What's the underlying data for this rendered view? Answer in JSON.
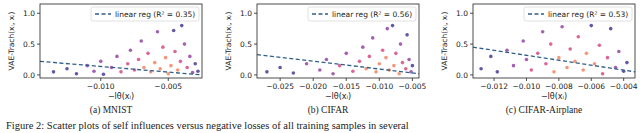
{
  "chart_data": [
    {
      "type": "scatter",
      "caption": "(a) MNIST",
      "x_label": "−lθ(xᵢ)",
      "y_label": "VAE-Trach(xᵢ, xᵢ)",
      "xlim": [
        -0.0145,
        -0.0025
      ],
      "ylim": [
        -0.05,
        1.15
      ],
      "xticks": [
        {
          "value": -0.01,
          "label": "−0.010"
        },
        {
          "value": -0.005,
          "label": "−0.005"
        }
      ],
      "yticks": [
        {
          "value": 0,
          "label": "0.0"
        },
        {
          "value": 0.5,
          "label": "0.5"
        },
        {
          "value": 1,
          "label": "1.0"
        }
      ],
      "legend": "upper right",
      "series": [
        {
          "type": "scatter",
          "marker": "circle",
          "x": [
            -0.0135,
            -0.0125,
            -0.0118,
            -0.011,
            -0.0105,
            -0.01,
            -0.0098,
            -0.0092,
            -0.0088,
            -0.0085,
            -0.008,
            -0.0078,
            -0.0075,
            -0.0072,
            -0.007,
            -0.0068,
            -0.0065,
            -0.0063,
            -0.006,
            -0.0058,
            -0.0056,
            -0.0054,
            -0.0052,
            -0.005,
            -0.0048,
            -0.0046,
            -0.0045,
            -0.0043,
            -0.0041,
            -0.004,
            -0.0038,
            -0.0036,
            -0.0034,
            -0.0032,
            -0.003,
            -0.0028
          ],
          "values": [
            0.05,
            0.1,
            0.02,
            0.15,
            0.06,
            0.22,
            0.01,
            0.12,
            0.3,
            0.05,
            0.18,
            0.4,
            0.08,
            0.25,
            0.55,
            0.12,
            0.35,
            0.05,
            0.2,
            0.7,
            0.1,
            0.45,
            0.28,
            0.02,
            0.15,
            0.72,
            0.38,
            0.08,
            0.22,
            0.8,
            0.5,
            0.12,
            0.3,
            0.04,
            0.18,
            0.06
          ],
          "colors": [
            "#3b2f8f",
            "#3b2f8f",
            "#3b2f8f",
            "#8e3a9e",
            "#8e3a9e",
            "#8e3a9e",
            "#3b2f8f",
            "#8e3a9e",
            "#8e3a9e",
            "#d2407e",
            "#d2407e",
            "#8e3a9e",
            "#d2407e",
            "#d2407e",
            "#8e3a9e",
            "#f27d5a",
            "#d2407e",
            "#f27d5a",
            "#f27d5a",
            "#8e3a9e",
            "#f27d5a",
            "#d2407e",
            "#f27d5a",
            "#f27d5a",
            "#f27d5a",
            "#3b2f8f",
            "#d2407e",
            "#f27d5a",
            "#d2407e",
            "#3b2f8f",
            "#8e3a9e",
            "#d2407e",
            "#8e3a9e",
            "#8e3a9e",
            "#3b2f8f",
            "#3b2f8f"
          ]
        },
        {
          "type": "line",
          "name": "linear reg (R² = 0.35)",
          "color": "#2e5f8a",
          "line_style": "dashed",
          "x": [
            -0.0145,
            -0.0025
          ],
          "values": [
            0.22,
            0.0
          ]
        }
      ]
    },
    {
      "type": "scatter",
      "caption": "(b) CIFAR",
      "x_label": "−lθ(xᵢ)",
      "y_label": "VAE-Trach(xᵢ, xᵢ)",
      "xlim": [
        -0.0285,
        -0.004
      ],
      "ylim": [
        -0.05,
        1.15
      ],
      "xticks": [
        {
          "value": -0.025,
          "label": "−0.025"
        },
        {
          "value": -0.02,
          "label": "−0.020"
        },
        {
          "value": -0.015,
          "label": "−0.015"
        },
        {
          "value": -0.01,
          "label": "−0.010"
        },
        {
          "value": -0.005,
          "label": "−0.005"
        }
      ],
      "yticks": [
        {
          "value": 0,
          "label": "0.0"
        },
        {
          "value": 0.5,
          "label": "0.5"
        },
        {
          "value": 1,
          "label": "1.0"
        }
      ],
      "legend": "upper right",
      "series": [
        {
          "type": "scatter",
          "marker": "circle",
          "x": [
            -0.027,
            -0.025,
            -0.023,
            -0.021,
            -0.019,
            -0.018,
            -0.017,
            -0.016,
            -0.015,
            -0.014,
            -0.013,
            -0.0125,
            -0.012,
            -0.0115,
            -0.011,
            -0.0105,
            -0.01,
            -0.0095,
            -0.009,
            -0.0088,
            -0.0085,
            -0.008,
            -0.0078,
            -0.0075,
            -0.007,
            -0.0068,
            -0.0065,
            -0.006,
            -0.0058,
            -0.0055,
            -0.0052,
            -0.005
          ],
          "values": [
            0.05,
            0.12,
            0.03,
            0.18,
            0.08,
            0.25,
            0.02,
            0.15,
            0.35,
            0.06,
            0.22,
            0.45,
            0.1,
            0.3,
            0.6,
            0.05,
            0.18,
            0.4,
            0.28,
            0.75,
            0.08,
            0.8,
            0.15,
            0.35,
            0.02,
            0.5,
            0.2,
            0.1,
            0.65,
            0.25,
            0.05,
            0.15
          ],
          "colors": [
            "#3b2f8f",
            "#3b2f8f",
            "#3b2f8f",
            "#8e3a9e",
            "#8e3a9e",
            "#8e3a9e",
            "#8e3a9e",
            "#d2407e",
            "#8e3a9e",
            "#d2407e",
            "#d2407e",
            "#8e3a9e",
            "#f27d5a",
            "#d2407e",
            "#8e3a9e",
            "#f27d5a",
            "#f27d5a",
            "#d2407e",
            "#f27d5a",
            "#8e3a9e",
            "#f27d5a",
            "#3b2f8f",
            "#f27d5a",
            "#d2407e",
            "#f27d5a",
            "#8e3a9e",
            "#d2407e",
            "#d2407e",
            "#3b2f8f",
            "#8e3a9e",
            "#8e3a9e",
            "#3b2f8f"
          ]
        },
        {
          "type": "line",
          "name": "linear reg (R² = 0.56)",
          "color": "#2e5f8a",
          "line_style": "dashed",
          "x": [
            -0.0285,
            -0.004
          ],
          "values": [
            0.33,
            0.02
          ]
        }
      ]
    },
    {
      "type": "scatter",
      "caption": "(c) CIFAR-Airplane",
      "x_label": "−lθ(xᵢ)",
      "y_label": "VAE-Trach(xᵢ, xᵢ)",
      "xlim": [
        -0.0133,
        -0.0033
      ],
      "ylim": [
        -0.05,
        1.15
      ],
      "xticks": [
        {
          "value": -0.012,
          "label": "−0.012"
        },
        {
          "value": -0.01,
          "label": "−0.010"
        },
        {
          "value": -0.008,
          "label": "−0.008"
        },
        {
          "value": -0.006,
          "label": "−0.006"
        },
        {
          "value": -0.004,
          "label": "−0.004"
        }
      ],
      "yticks": [
        {
          "value": 0,
          "label": "0.0"
        },
        {
          "value": 0.5,
          "label": "0.5"
        },
        {
          "value": 1,
          "label": "1.0"
        }
      ],
      "legend": "upper right",
      "series": [
        {
          "type": "scatter",
          "marker": "circle",
          "x": [
            -0.0128,
            -0.0122,
            -0.0118,
            -0.0112,
            -0.0108,
            -0.0102,
            -0.01,
            -0.0097,
            -0.0093,
            -0.009,
            -0.0088,
            -0.0085,
            -0.0083,
            -0.008,
            -0.0078,
            -0.0075,
            -0.0073,
            -0.007,
            -0.0068,
            -0.0065,
            -0.0063,
            -0.006,
            -0.0058,
            -0.0055,
            -0.0053,
            -0.005,
            -0.0048,
            -0.0045,
            -0.0043,
            -0.004,
            -0.0038
          ],
          "values": [
            0.1,
            0.3,
            0.05,
            0.4,
            0.15,
            0.55,
            0.25,
            0.08,
            0.35,
            0.7,
            0.18,
            0.5,
            0.05,
            0.28,
            0.78,
            0.12,
            0.42,
            0.22,
            0.62,
            0.08,
            0.35,
            0.8,
            0.18,
            0.48,
            0.02,
            0.28,
            0.75,
            0.12,
            0.38,
            0.06,
            0.2
          ],
          "colors": [
            "#3b2f8f",
            "#3b2f8f",
            "#3b2f8f",
            "#8e3a9e",
            "#8e3a9e",
            "#8e3a9e",
            "#8e3a9e",
            "#d2407e",
            "#d2407e",
            "#8e3a9e",
            "#d2407e",
            "#d2407e",
            "#f27d5a",
            "#f27d5a",
            "#8e3a9e",
            "#f27d5a",
            "#d2407e",
            "#f27d5a",
            "#d2407e",
            "#f27d5a",
            "#f27d5a",
            "#3b2f8f",
            "#f27d5a",
            "#d2407e",
            "#d2407e",
            "#d2407e",
            "#3b2f8f",
            "#8e3a9e",
            "#8e3a9e",
            "#3b2f8f",
            "#3b2f8f"
          ]
        },
        {
          "type": "line",
          "name": "linear reg (R² = 0.53)",
          "color": "#2e5f8a",
          "line_style": "dashed",
          "x": [
            -0.0133,
            -0.0033
          ],
          "values": [
            0.45,
            0.05
          ]
        }
      ]
    }
  ],
  "figure": {
    "caption": "Figure 2: Scatter plots of self influences versus negative losses of all training samples in several"
  }
}
